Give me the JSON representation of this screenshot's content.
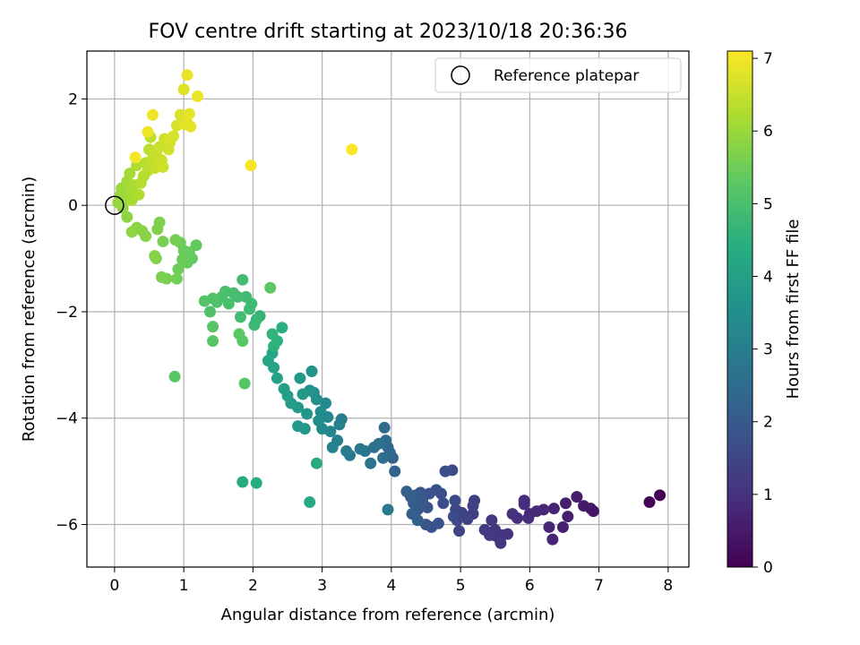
{
  "chart_data": {
    "type": "scatter",
    "title": "FOV centre drift starting at 2023/10/18 20:36:36",
    "xlabel": "Angular distance from reference (arcmin)",
    "ylabel": "Rotation from reference (arcmin)",
    "xlim": [
      -0.4,
      8.3
    ],
    "ylim": [
      -6.8,
      2.9
    ],
    "xticks": [
      0,
      1,
      2,
      3,
      4,
      5,
      6,
      7,
      8
    ],
    "yticks": [
      -6,
      -4,
      -2,
      0,
      2
    ],
    "grid": true,
    "legend": {
      "placement": "top-right",
      "entries": [
        "Reference platepar"
      ]
    },
    "reference_point": {
      "x": 0,
      "y": 0
    },
    "colorbar": {
      "label": "Hours from first FF file",
      "range": [
        0,
        7.1
      ],
      "ticks": [
        0,
        1,
        2,
        3,
        4,
        5,
        6,
        7
      ],
      "colormap": "viridis"
    },
    "points": [
      [
        7.88,
        -5.45,
        0.0
      ],
      [
        7.73,
        -5.58,
        0.05
      ],
      [
        6.92,
        -5.75,
        0.4
      ],
      [
        6.88,
        -5.7,
        0.45
      ],
      [
        6.78,
        -5.65,
        0.5
      ],
      [
        6.68,
        -5.48,
        0.55
      ],
      [
        6.52,
        -5.6,
        0.6
      ],
      [
        6.55,
        -5.85,
        0.62
      ],
      [
        6.48,
        -6.05,
        0.65
      ],
      [
        6.35,
        -5.7,
        0.7
      ],
      [
        6.33,
        -6.28,
        0.72
      ],
      [
        6.28,
        -6.05,
        0.75
      ],
      [
        6.2,
        -5.72,
        0.78
      ],
      [
        6.1,
        -5.75,
        0.82
      ],
      [
        6.0,
        -5.8,
        0.85
      ],
      [
        5.98,
        -5.88,
        0.88
      ],
      [
        5.92,
        -5.55,
        0.9
      ],
      [
        5.92,
        -5.62,
        0.92
      ],
      [
        5.82,
        -5.88,
        0.95
      ],
      [
        5.75,
        -5.8,
        1.0
      ],
      [
        5.68,
        -6.18,
        1.02
      ],
      [
        5.6,
        -6.2,
        1.05
      ],
      [
        5.58,
        -6.35,
        1.08
      ],
      [
        5.55,
        -6.25,
        1.1
      ],
      [
        5.5,
        -6.1,
        1.12
      ],
      [
        5.48,
        -6.2,
        1.15
      ],
      [
        5.45,
        -5.92,
        1.18
      ],
      [
        5.42,
        -6.2,
        1.2
      ],
      [
        5.35,
        -6.1,
        1.25
      ],
      [
        5.18,
        -5.8,
        1.3
      ],
      [
        5.2,
        -5.55,
        1.32
      ],
      [
        5.18,
        -5.65,
        1.35
      ],
      [
        5.1,
        -5.9,
        1.38
      ],
      [
        5.02,
        -5.78,
        1.42
      ],
      [
        4.98,
        -6.12,
        1.45
      ],
      [
        4.95,
        -5.92,
        1.5
      ],
      [
        4.93,
        -5.72,
        1.52
      ],
      [
        4.92,
        -5.55,
        1.55
      ],
      [
        4.9,
        -5.85,
        1.6
      ],
      [
        4.88,
        -4.98,
        1.62
      ],
      [
        4.78,
        -5.0,
        1.65
      ],
      [
        4.75,
        -5.6,
        1.68
      ],
      [
        4.72,
        -5.42,
        1.72
      ],
      [
        4.65,
        -5.35,
        1.75
      ],
      [
        4.68,
        -5.98,
        1.78
      ],
      [
        4.58,
        -6.05,
        1.8
      ],
      [
        4.55,
        -5.42,
        1.82
      ],
      [
        4.52,
        -5.68,
        1.85
      ],
      [
        4.5,
        -6.0,
        1.88
      ],
      [
        4.45,
        -5.55,
        1.92
      ],
      [
        4.42,
        -5.4,
        1.95
      ],
      [
        4.38,
        -5.72,
        2.0
      ],
      [
        4.35,
        -5.45,
        2.02
      ],
      [
        4.32,
        -5.6,
        2.05
      ],
      [
        4.3,
        -5.8,
        2.08
      ],
      [
        4.28,
        -5.48,
        2.1
      ],
      [
        4.22,
        -5.38,
        2.15
      ],
      [
        4.38,
        -5.92,
        2.18
      ],
      [
        4.05,
        -5.0,
        2.25
      ],
      [
        4.02,
        -4.75,
        2.3
      ],
      [
        3.98,
        -4.65,
        2.35
      ],
      [
        3.95,
        -4.55,
        2.4
      ],
      [
        3.92,
        -4.42,
        2.45
      ],
      [
        3.9,
        -4.18,
        2.5
      ],
      [
        3.88,
        -4.75,
        2.55
      ],
      [
        3.82,
        -4.48,
        2.6
      ],
      [
        3.75,
        -4.55,
        2.65
      ],
      [
        3.7,
        -4.85,
        2.7
      ],
      [
        3.62,
        -4.62,
        2.75
      ],
      [
        3.55,
        -4.58,
        2.8
      ],
      [
        3.95,
        -5.72,
        2.85
      ],
      [
        3.4,
        -4.7,
        2.9
      ],
      [
        3.35,
        -4.62,
        2.95
      ],
      [
        3.28,
        -4.02,
        3.0
      ],
      [
        3.25,
        -4.12,
        3.05
      ],
      [
        3.22,
        -4.42,
        3.1
      ],
      [
        3.15,
        -4.55,
        3.15
      ],
      [
        3.12,
        -4.25,
        3.2
      ],
      [
        3.08,
        -3.98,
        3.25
      ],
      [
        3.05,
        -3.72,
        3.3
      ],
      [
        3.0,
        -4.2,
        3.35
      ],
      [
        2.98,
        -3.88,
        3.4
      ],
      [
        2.95,
        -4.05,
        3.45
      ],
      [
        2.92,
        -3.65,
        3.5
      ],
      [
        2.88,
        -3.52,
        3.55
      ],
      [
        2.85,
        -3.12,
        3.6
      ],
      [
        2.82,
        -3.48,
        3.65
      ],
      [
        2.78,
        -3.92,
        3.7
      ],
      [
        2.75,
        -4.2,
        3.72
      ],
      [
        2.72,
        -3.55,
        3.75
      ],
      [
        2.68,
        -3.25,
        3.8
      ],
      [
        2.65,
        -3.8,
        3.82
      ],
      [
        2.65,
        -4.15,
        3.85
      ],
      [
        2.55,
        -3.72,
        3.9
      ],
      [
        2.5,
        -3.58,
        3.95
      ],
      [
        2.45,
        -3.45,
        4.0
      ],
      [
        2.35,
        -3.25,
        4.05
      ],
      [
        2.3,
        -3.05,
        4.1
      ],
      [
        2.28,
        -2.78,
        4.15
      ],
      [
        2.22,
        -2.92,
        4.2
      ],
      [
        2.82,
        -5.58,
        4.25
      ],
      [
        2.92,
        -4.85,
        4.3
      ],
      [
        1.85,
        -5.2,
        4.35
      ],
      [
        2.05,
        -5.22,
        4.4
      ],
      [
        2.42,
        -2.3,
        4.45
      ],
      [
        2.35,
        -2.55,
        4.5
      ],
      [
        2.3,
        -2.65,
        4.55
      ],
      [
        2.28,
        -2.42,
        4.6
      ],
      [
        2.1,
        -2.08,
        4.65
      ],
      [
        2.05,
        -2.15,
        4.7
      ],
      [
        2.02,
        -2.25,
        4.75
      ],
      [
        1.98,
        -1.85,
        4.8
      ],
      [
        1.95,
        -1.95,
        4.82
      ],
      [
        1.9,
        -1.72,
        4.85
      ],
      [
        1.85,
        -1.4,
        4.88
      ],
      [
        1.82,
        -2.1,
        4.9
      ],
      [
        1.78,
        -1.72,
        4.92
      ],
      [
        1.72,
        -1.65,
        4.95
      ],
      [
        1.65,
        -1.85,
        4.98
      ],
      [
        1.6,
        -1.62,
        5.0
      ],
      [
        1.55,
        -1.72,
        5.02
      ],
      [
        1.48,
        -1.82,
        5.05
      ],
      [
        1.42,
        -1.75,
        5.08
      ],
      [
        1.38,
        -2.0,
        5.1
      ],
      [
        1.3,
        -1.8,
        5.12
      ],
      [
        1.42,
        -2.28,
        5.15
      ],
      [
        1.42,
        -2.55,
        5.18
      ],
      [
        1.88,
        -3.35,
        5.2
      ],
      [
        0.87,
        -3.22,
        5.22
      ],
      [
        1.85,
        -2.55,
        5.25
      ],
      [
        1.8,
        -2.42,
        5.28
      ],
      [
        2.25,
        -1.55,
        5.3
      ],
      [
        1.18,
        -0.75,
        5.35
      ],
      [
        1.12,
        -1.0,
        5.38
      ],
      [
        1.08,
        -0.88,
        5.4
      ],
      [
        1.05,
        -1.08,
        5.42
      ],
      [
        1.0,
        -0.85,
        5.45
      ],
      [
        0.98,
        -1.02,
        5.48
      ],
      [
        0.95,
        -0.7,
        5.5
      ],
      [
        0.92,
        -1.2,
        5.52
      ],
      [
        0.9,
        -1.38,
        5.55
      ],
      [
        0.88,
        -0.65,
        5.58
      ],
      [
        0.75,
        -1.38,
        5.6
      ],
      [
        0.7,
        -0.68,
        5.62
      ],
      [
        0.68,
        -1.35,
        5.65
      ],
      [
        0.65,
        -0.32,
        5.68
      ],
      [
        0.62,
        -0.45,
        5.7
      ],
      [
        0.6,
        -1.0,
        5.72
      ],
      [
        0.58,
        -0.95,
        5.75
      ],
      [
        0.45,
        -0.58,
        5.78
      ],
      [
        0.4,
        -0.48,
        5.8
      ],
      [
        0.32,
        -0.42,
        5.82
      ],
      [
        0.25,
        -0.5,
        5.85
      ],
      [
        0.18,
        -0.22,
        5.88
      ],
      [
        0.12,
        -0.05,
        5.9
      ],
      [
        0.05,
        0.05,
        5.95
      ],
      [
        0.08,
        0.18,
        6.0
      ],
      [
        0.1,
        0.32,
        6.02
      ],
      [
        0.15,
        0.12,
        6.05
      ],
      [
        0.18,
        0.45,
        6.08
      ],
      [
        0.2,
        0.25,
        6.1
      ],
      [
        0.22,
        0.6,
        6.12
      ],
      [
        0.25,
        0.1,
        6.15
      ],
      [
        0.28,
        0.38,
        6.18
      ],
      [
        0.3,
        0.22,
        6.2
      ],
      [
        0.32,
        0.75,
        6.22
      ],
      [
        0.35,
        0.2,
        6.25
      ],
      [
        0.38,
        0.42,
        6.28
      ],
      [
        0.42,
        0.55,
        6.3
      ],
      [
        0.45,
        0.8,
        6.32
      ],
      [
        0.48,
        0.65,
        6.35
      ],
      [
        0.5,
        1.05,
        6.38
      ],
      [
        0.52,
        1.28,
        6.4
      ],
      [
        0.55,
        0.88,
        6.42
      ],
      [
        0.58,
        0.7,
        6.45
      ],
      [
        0.6,
        1.0,
        6.48
      ],
      [
        0.62,
        0.78,
        6.5
      ],
      [
        0.65,
        1.1,
        6.52
      ],
      [
        0.68,
        0.85,
        6.55
      ],
      [
        0.7,
        0.72,
        6.58
      ],
      [
        0.72,
        1.25,
        6.6
      ],
      [
        0.78,
        1.05,
        6.62
      ],
      [
        0.8,
        1.18,
        6.65
      ],
      [
        0.85,
        1.3,
        6.68
      ],
      [
        0.9,
        1.5,
        6.7
      ],
      [
        0.95,
        1.7,
        6.72
      ],
      [
        1.0,
        2.18,
        6.75
      ],
      [
        1.02,
        1.52,
        6.78
      ],
      [
        1.05,
        1.55,
        6.8
      ],
      [
        1.08,
        1.72,
        6.82
      ],
      [
        1.1,
        1.48,
        6.85
      ],
      [
        1.05,
        2.45,
        6.88
      ],
      [
        1.2,
        2.05,
        6.9
      ],
      [
        0.55,
        1.7,
        6.92
      ],
      [
        0.48,
        1.38,
        6.95
      ],
      [
        0.3,
        0.9,
        6.98
      ],
      [
        1.97,
        0.75,
        7.02
      ],
      [
        3.43,
        1.05,
        7.08
      ]
    ]
  }
}
